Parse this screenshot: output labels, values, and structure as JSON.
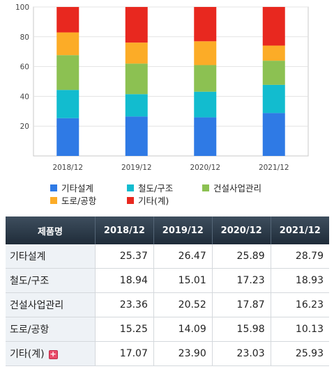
{
  "chart_data": {
    "type": "bar",
    "stacked": true,
    "categories": [
      "2018/12",
      "2019/12",
      "2020/12",
      "2021/12"
    ],
    "ylim": [
      0,
      100
    ],
    "yticks": [
      20,
      40,
      60,
      80,
      100
    ],
    "title": "",
    "xlabel": "",
    "ylabel": "",
    "series": [
      {
        "name": "기타설계",
        "color": "#2f7ae5",
        "values": [
          25.37,
          26.47,
          25.89,
          28.79
        ]
      },
      {
        "name": "철도/구조",
        "color": "#12bccf",
        "values": [
          18.94,
          15.01,
          17.23,
          18.93
        ]
      },
      {
        "name": "건설사업관리",
        "color": "#8cc152",
        "values": [
          23.36,
          20.52,
          17.87,
          16.23
        ]
      },
      {
        "name": "도로/공항",
        "color": "#fcac27",
        "values": [
          15.25,
          14.09,
          15.98,
          10.13
        ]
      },
      {
        "name": "기타(계)",
        "color": "#e8281f",
        "values": [
          17.07,
          23.9,
          23.03,
          25.93
        ]
      }
    ],
    "legend_position": "bottom"
  },
  "table": {
    "header": [
      "제품명",
      "2018/12",
      "2019/12",
      "2020/12",
      "2021/12"
    ],
    "rows": [
      {
        "label": "기타설계",
        "values": [
          "25.37",
          "26.47",
          "25.89",
          "28.79"
        ]
      },
      {
        "label": "철도/구조",
        "values": [
          "18.94",
          "15.01",
          "17.23",
          "18.93"
        ]
      },
      {
        "label": "건설사업관리",
        "values": [
          "23.36",
          "20.52",
          "17.87",
          "16.23"
        ]
      },
      {
        "label": "도로/공항",
        "values": [
          "15.25",
          "14.09",
          "15.98",
          "10.13"
        ]
      },
      {
        "label": "기타(계)",
        "values": [
          "17.07",
          "23.90",
          "23.03",
          "25.93"
        ],
        "expandable": true
      }
    ]
  },
  "icons": {
    "expand": "plus-icon"
  }
}
